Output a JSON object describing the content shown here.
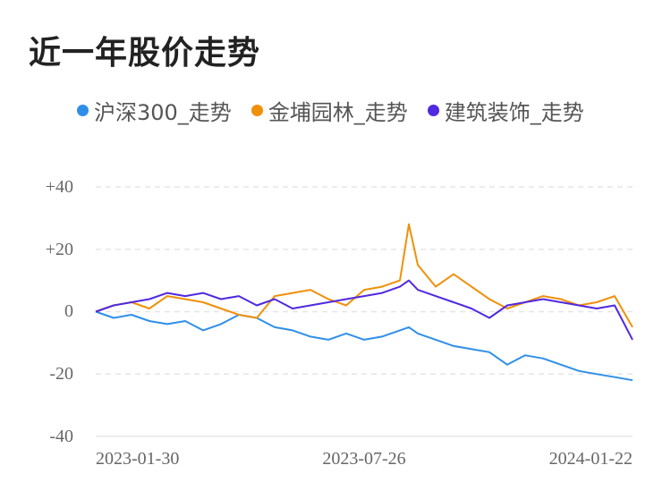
{
  "title": "近一年股价走势",
  "chart_data": {
    "type": "line",
    "title": "近一年股价走势",
    "xlabel": "",
    "ylabel": "",
    "x_tick_labels": [
      "2023-01-30",
      "2023-07-26",
      "2024-01-22"
    ],
    "y_tick_labels": [
      "+40",
      "+20",
      "0",
      "-20",
      "-40"
    ],
    "y_ticks": [
      40,
      20,
      0,
      -20,
      -40
    ],
    "ylim": [
      -40,
      40
    ],
    "grid": "horizontal dashed",
    "legend_position": "top",
    "x_points": [
      0,
      10,
      20,
      30,
      40,
      50,
      60,
      70,
      80,
      90,
      100,
      110,
      120,
      130,
      140,
      150,
      160,
      170,
      175,
      180,
      190,
      200,
      210,
      220,
      230,
      240,
      250,
      260,
      270,
      280,
      290,
      300
    ],
    "series": [
      {
        "name": "沪深300_走势",
        "color": "#2f8fe8",
        "values": [
          0,
          -2,
          -1,
          -3,
          -4,
          -3,
          -6,
          -4,
          -1,
          -2,
          -5,
          -6,
          -8,
          -9,
          -7,
          -9,
          -8,
          -6,
          -5,
          -7,
          -9,
          -11,
          -12,
          -13,
          -17,
          -14,
          -15,
          -17,
          -19,
          -20,
          -21,
          -22
        ]
      },
      {
        "name": "金埔园林_走势",
        "color": "#f0900a",
        "values": [
          0,
          2,
          3,
          1,
          5,
          4,
          3,
          1,
          -1,
          -2,
          5,
          6,
          7,
          4,
          2,
          7,
          8,
          10,
          28,
          15,
          8,
          12,
          8,
          4,
          1,
          3,
          5,
          4,
          2,
          3,
          5,
          -5
        ]
      },
      {
        "name": "建筑装饰_走势",
        "color": "#5029e0",
        "values": [
          0,
          2,
          3,
          4,
          6,
          5,
          6,
          4,
          5,
          2,
          4,
          1,
          2,
          3,
          4,
          5,
          6,
          8,
          10,
          7,
          5,
          3,
          1,
          -2,
          2,
          3,
          4,
          3,
          2,
          1,
          2,
          -9
        ]
      }
    ]
  }
}
